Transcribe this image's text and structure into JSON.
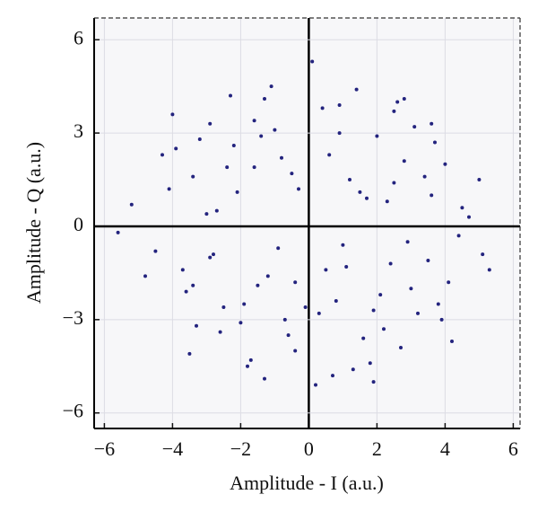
{
  "chart_data": {
    "type": "scatter",
    "x_label": "Amplitude - I (a.u.)",
    "y_label": "Amplitude - Q (a.u.)",
    "color": "#23237e",
    "grid": true,
    "xlim": [
      -6.3,
      6.2
    ],
    "ylim": [
      -6.5,
      6.7
    ],
    "xticks": [
      {
        "value": -6,
        "label": "−6"
      },
      {
        "value": -4,
        "label": "−4"
      },
      {
        "value": -2,
        "label": "−2"
      },
      0,
      2,
      4,
      6
    ],
    "yticks": [
      {
        "value": -6,
        "label": "−6"
      },
      {
        "value": -3,
        "label": "−3"
      },
      0,
      3,
      6
    ],
    "x": [
      -4.1,
      -3.6,
      -3.2,
      -2.8,
      -2.4,
      -2.0,
      -1.6,
      -1.2,
      -0.8,
      -0.4,
      0.4,
      0.8,
      1.2,
      1.6,
      2.0,
      2.4,
      2.8,
      3.2,
      3.6,
      4.1,
      -4.5,
      -3.9,
      -3.4,
      -2.9,
      -2.5,
      -2.1,
      -1.7,
      -1.3,
      -0.9,
      -0.5,
      0.5,
      0.9,
      1.3,
      1.7,
      2.1,
      2.5,
      2.9,
      3.4,
      3.9,
      4.5,
      -3.7,
      -3.0,
      -2.6,
      -2.2,
      -1.5,
      -1.1,
      -0.7,
      -0.3,
      0.2,
      0.6,
      1.0,
      1.4,
      1.9,
      2.3,
      2.7,
      3.1,
      3.5,
      4.0,
      4.4,
      5.0,
      -5.2,
      -4.8,
      -4.3,
      -3.5,
      -2.7,
      -1.9,
      -1.4,
      -0.6,
      0.1,
      0.7,
      1.5,
      2.2,
      2.6,
      3.0,
      3.7,
      4.2,
      4.7,
      5.1,
      5.3,
      -5.6,
      -4.0,
      -3.3,
      -2.3,
      -1.8,
      -1.0,
      -0.1,
      0.9,
      1.8,
      2.8,
      3.8,
      -2.9,
      -1.6,
      -0.4,
      1.1,
      2.5,
      3.6,
      -3.4,
      -1.3,
      0.3,
      1.9
    ],
    "y": [
      1.2,
      -2.1,
      2.8,
      -0.9,
      1.9,
      -3.1,
      3.4,
      -1.6,
      2.2,
      -4.0,
      3.8,
      -2.4,
      1.5,
      -3.6,
      2.9,
      -1.2,
      2.1,
      -2.8,
      1.0,
      -1.8,
      -0.8,
      2.5,
      -1.9,
      3.3,
      -2.6,
      1.1,
      -4.3,
      4.1,
      -0.7,
      1.7,
      -1.4,
      3.0,
      -4.6,
      0.9,
      -2.2,
      3.7,
      -0.5,
      1.6,
      -3.0,
      0.6,
      -1.4,
      0.4,
      -3.4,
      2.6,
      -1.9,
      4.5,
      -3.0,
      1.2,
      -5.1,
      2.3,
      -0.6,
      4.4,
      -2.7,
      0.8,
      -3.9,
      3.2,
      -1.1,
      2.0,
      -0.3,
      1.5,
      0.7,
      -1.6,
      2.3,
      -4.1,
      0.5,
      -2.5,
      2.9,
      -3.5,
      5.3,
      -4.8,
      1.1,
      -3.3,
      4.0,
      -2.0,
      2.7,
      -3.7,
      0.3,
      -0.9,
      -1.4,
      -0.2,
      3.6,
      -3.2,
      4.2,
      -4.5,
      3.1,
      -2.6,
      3.9,
      -4.4,
      4.1,
      -2.5,
      -1.0,
      1.9,
      -1.8,
      -1.3,
      1.4,
      3.3,
      1.6,
      -4.9,
      -2.8,
      -5.0
    ]
  }
}
